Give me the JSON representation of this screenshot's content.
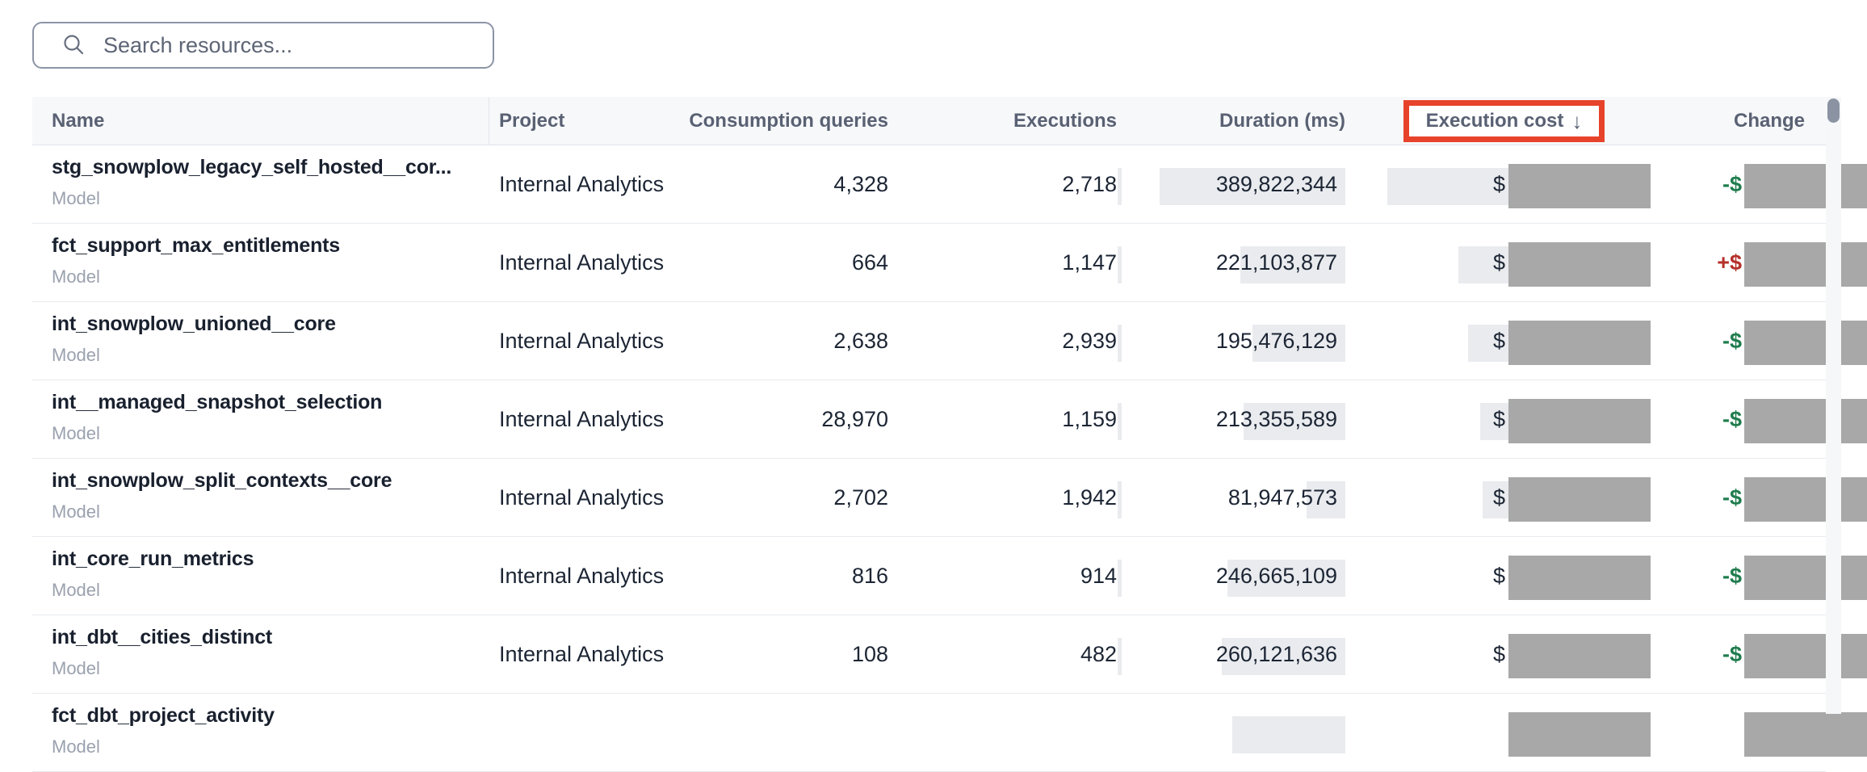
{
  "search": {
    "placeholder": "Search resources...",
    "icon": "magnifier"
  },
  "header": {
    "name": "Name",
    "project": "Project",
    "consumption_queries": "Consumption queries",
    "executions": "Executions",
    "duration": "Duration (ms)",
    "execution_cost": "Execution cost",
    "sort_arrow": "↓",
    "change": "Change"
  },
  "sort": {
    "column": "Execution cost",
    "direction": "descending",
    "highlighted": true
  },
  "rows": [
    {
      "name": "stg_snowplow_legacy_self_hosted__cor...",
      "type": "Model",
      "project": "Internal Analytics",
      "queries": "4,328",
      "executions": "2,718",
      "duration": "389,822,344",
      "cost_prefix": "$",
      "cost_redacted": true,
      "cost_bar_w": 326,
      "change_prefix": "-$",
      "change_trend": "decrease",
      "change_redacted": true
    },
    {
      "name": "fct_support_max_entitlements",
      "type": "Model",
      "project": "Internal Analytics",
      "queries": "664",
      "executions": "1,147",
      "duration": "221,103,877",
      "cost_prefix": "$",
      "cost_redacted": true,
      "cost_bar_w": 238,
      "change_prefix": "+$",
      "change_trend": "increase",
      "change_redacted": true
    },
    {
      "name": "int_snowplow_unioned__core",
      "type": "Model",
      "project": "Internal Analytics",
      "queries": "2,638",
      "executions": "2,939",
      "duration": "195,476,129",
      "cost_prefix": "$",
      "cost_redacted": true,
      "cost_bar_w": 226,
      "change_prefix": "-$",
      "change_trend": "decrease",
      "change_redacted": true
    },
    {
      "name": "int__managed_snapshot_selection",
      "type": "Model",
      "project": "Internal Analytics",
      "queries": "28,970",
      "executions": "1,159",
      "duration": "213,355,589",
      "cost_prefix": "$",
      "cost_redacted": true,
      "cost_bar_w": 211,
      "change_prefix": "-$",
      "change_trend": "decrease",
      "change_redacted": true
    },
    {
      "name": "int_snowplow_split_contexts__core",
      "type": "Model",
      "project": "Internal Analytics",
      "queries": "2,702",
      "executions": "1,942",
      "duration": "81,947,573",
      "cost_prefix": "$",
      "cost_redacted": true,
      "cost_bar_w": 208,
      "change_prefix": "-$",
      "change_trend": "decrease",
      "change_redacted": true
    },
    {
      "name": "int_core_run_metrics",
      "type": "Model",
      "project": "Internal Analytics",
      "queries": "816",
      "executions": "914",
      "duration": "246,665,109",
      "cost_prefix": "$",
      "cost_redacted": true,
      "cost_bar_w": 170,
      "change_prefix": "-$",
      "change_trend": "decrease",
      "change_redacted": true
    },
    {
      "name": "int_dbt__cities_distinct",
      "type": "Model",
      "project": "Internal Analytics",
      "queries": "108",
      "executions": "482",
      "duration": "260,121,636",
      "cost_prefix": "$",
      "cost_redacted": true,
      "cost_bar_w": 170,
      "change_prefix": "-$",
      "change_trend": "decrease",
      "change_redacted": true
    },
    {
      "name": "fct_dbt_project_activity",
      "type": "Model",
      "project": null,
      "queries": null,
      "executions": null,
      "duration": null,
      "cost_prefix": null,
      "cost_redacted": true,
      "cost_bar_w": 170,
      "change_prefix": null,
      "change_trend": null,
      "change_redacted": true,
      "partial": true
    }
  ],
  "colors": {
    "sort_highlight": "#e7432b",
    "redaction_grey": "#a8a8a8",
    "value_bar_grey": "#e9ebee",
    "change_decrease_green": "#1f7c4d",
    "change_increase_red": "#b5302a",
    "header_bg": "#f7f8fa"
  }
}
